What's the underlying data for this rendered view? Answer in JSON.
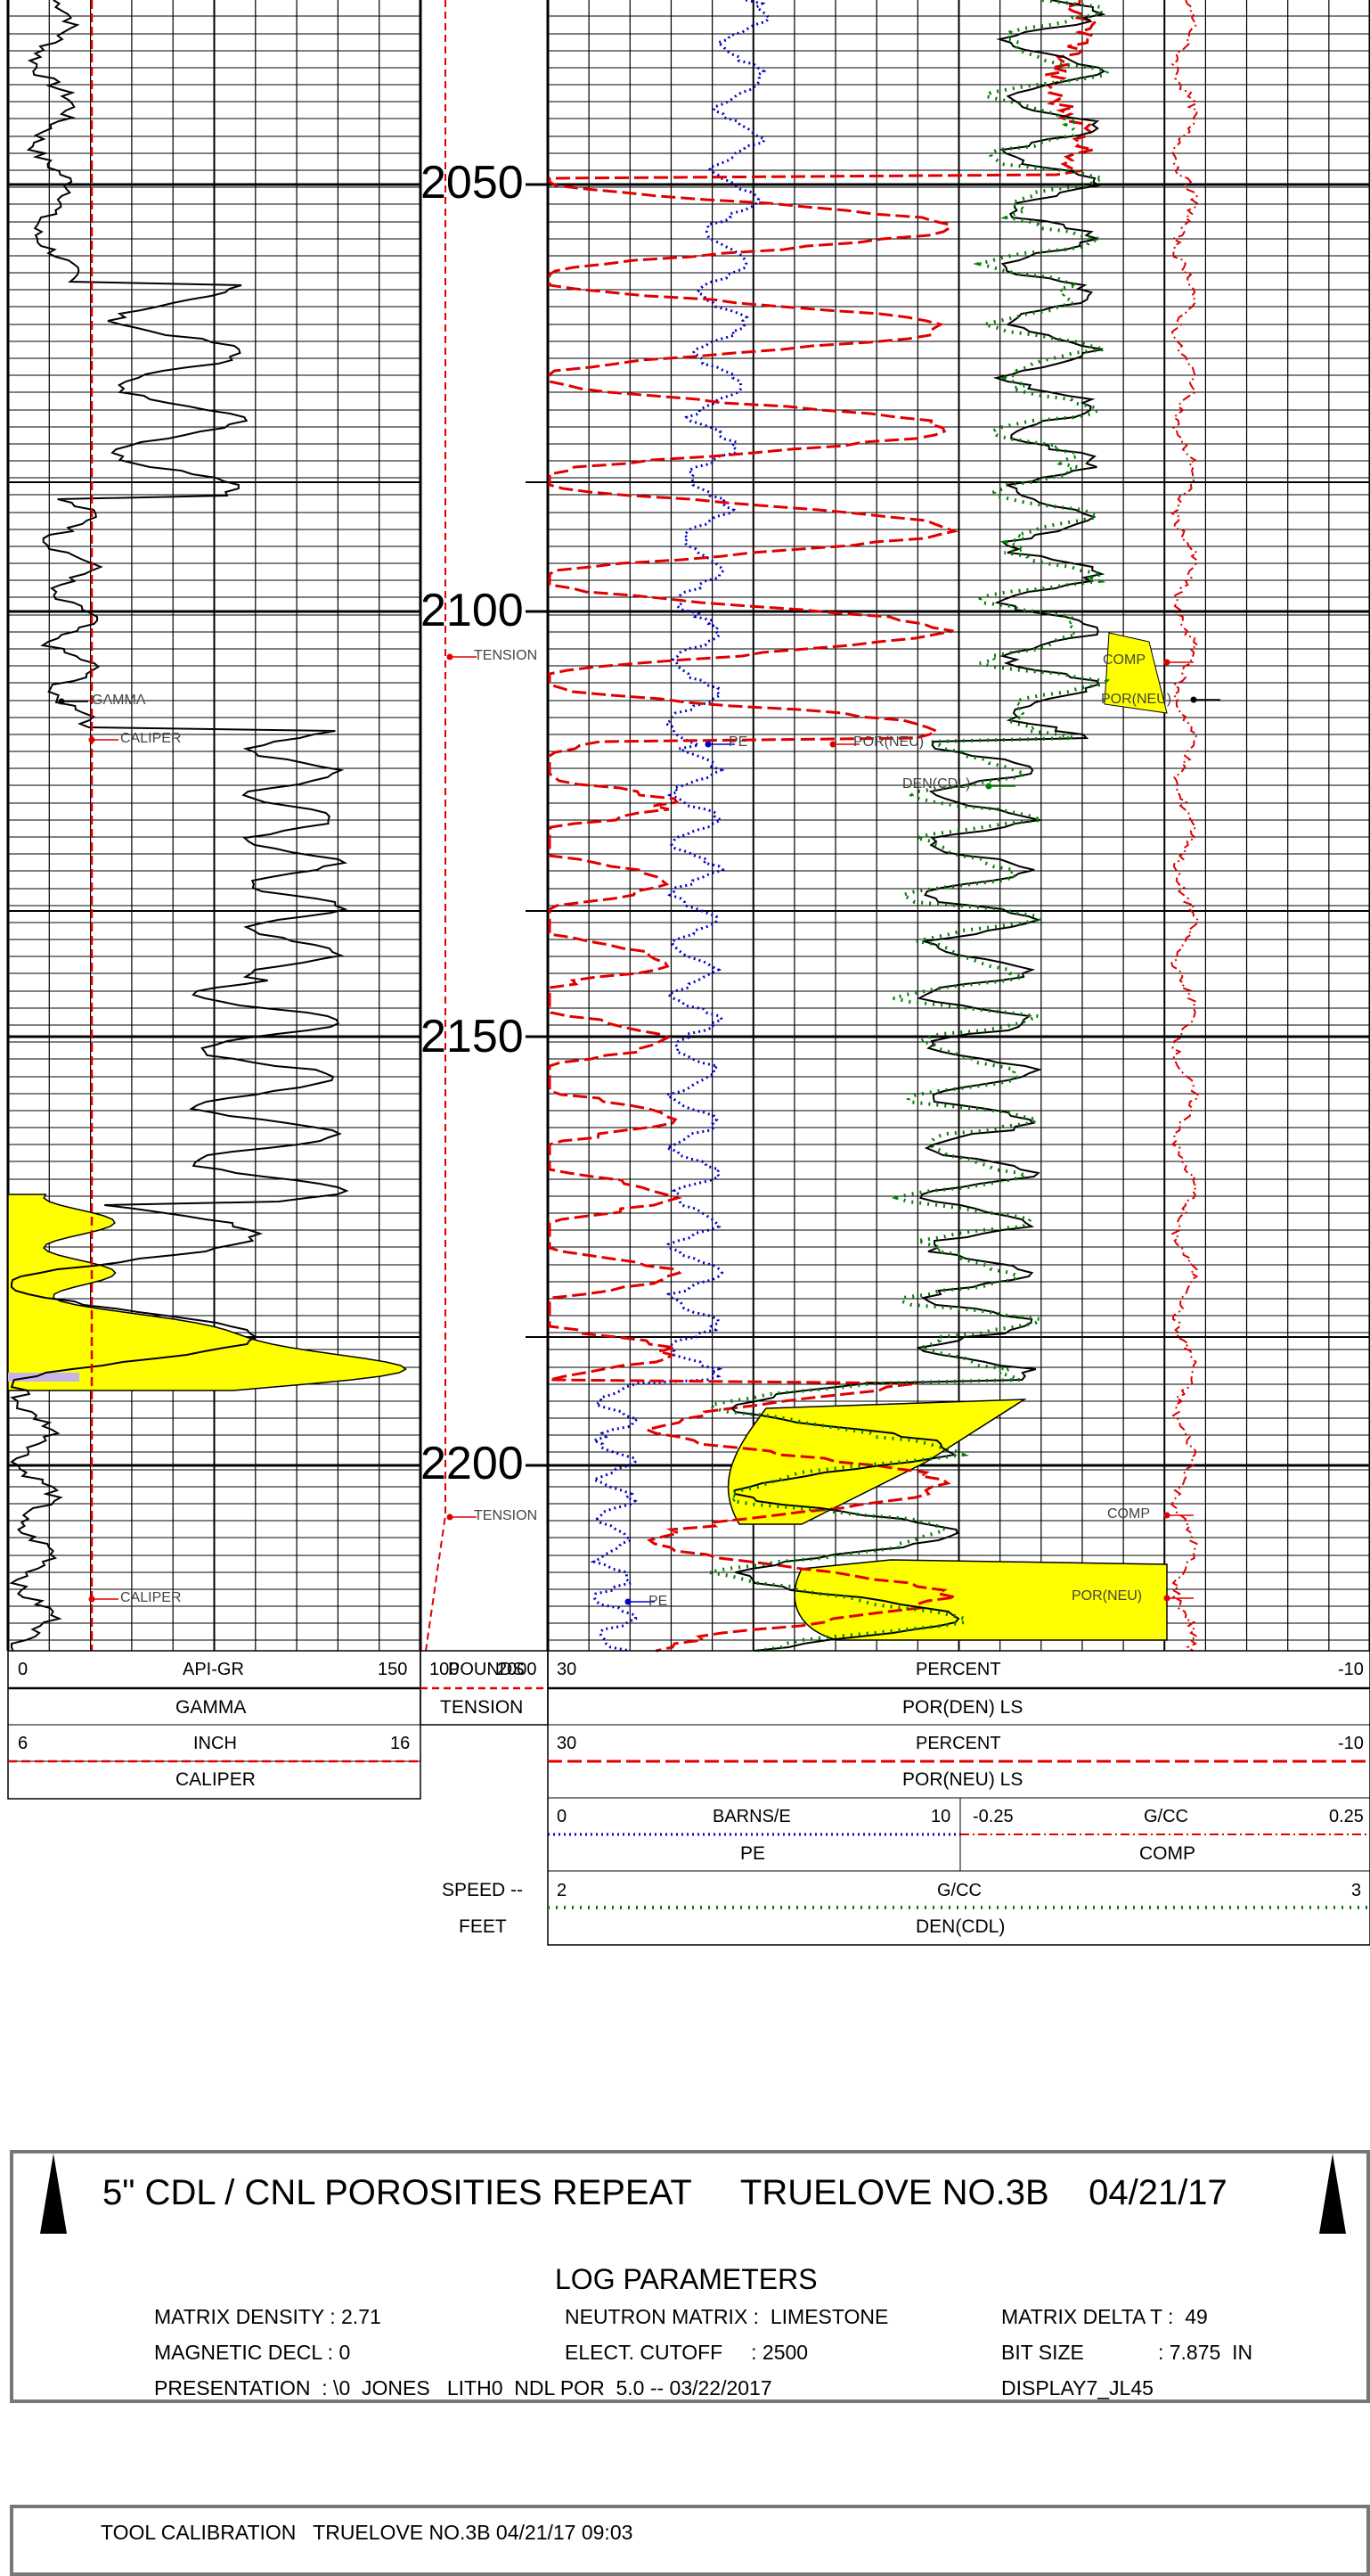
{
  "depth_track": {
    "labels": [
      "2050",
      "2100",
      "2150",
      "2200"
    ]
  },
  "tags": {
    "tension_1": "TENSION",
    "tension_2": "TENSION",
    "gamma": "GAMMA",
    "caliper_1": "CALIPER",
    "caliper_2": "CALIPER",
    "pe_1": "PE",
    "pe_2": "PE",
    "por_neu_1": "POR(NEU)",
    "por_neu_2": "POR(NEU)",
    "por_neu_3": "POR(NEU)",
    "den_cdl": "DEN(CDL)",
    "comp_1": "COMP",
    "comp_2": "COMP"
  },
  "scales": {
    "gamma": {
      "left": "0",
      "unit": "API-GR",
      "right": "150",
      "mnemonic": "GAMMA"
    },
    "caliper": {
      "left": "6",
      "unit": "INCH",
      "right": "16",
      "mnemonic": "CALIPER"
    },
    "tension": {
      "left": "100",
      "unit": "POUNDS",
      "right": "2000",
      "mnemonic": "TENSION"
    },
    "speed": {
      "label": "SPEED --",
      "unit": "FEET"
    },
    "por_den": {
      "left": "30",
      "unit": "PERCENT",
      "right": "-10",
      "mnemonic": "POR(DEN) LS"
    },
    "por_neu": {
      "left": "30",
      "unit": "PERCENT",
      "right": "-10",
      "mnemonic": "POR(NEU) LS"
    },
    "pe": {
      "left": "0",
      "unit": "BARNS/E",
      "right": "10",
      "mnemonic": "PE"
    },
    "comp": {
      "left": "-0.25",
      "unit": "G/CC",
      "right": "0.25",
      "mnemonic": "COMP"
    },
    "den": {
      "left": "2",
      "unit": "G/CC",
      "right": "3",
      "mnemonic": "DEN(CDL)"
    }
  },
  "header": {
    "title": "5\" CDL / CNL POROSITIES REPEAT     TRUELOVE NO.3B    04/21/17",
    "section": "LOG PARAMETERS",
    "params": {
      "matrix_density": "MATRIX DENSITY : 2.71",
      "magnetic_decl": "MAGNETIC DECL : 0",
      "presentation": "PRESENTATION  : \\0  JONES   LITH0  NDL POR  5.0 -- 03/22/2017",
      "neutron_matrix": "NEUTRON MATRIX :  LIMESTONE",
      "elect_cutoff": "ELECT. CUTOFF     : 2500",
      "matrix_delta_t": "MATRIX DELTA T :  49",
      "bit_size": "BIT SIZE             : 7.875  IN",
      "display": "DISPLAY7_JL45"
    }
  },
  "calibration": {
    "title": "TOOL CALIBRATION   TRUELOVE NO.3B 04/21/17 09:03"
  },
  "colors": {
    "gamma": "#000000",
    "caliper": "#e00000",
    "tension": "#e00000",
    "por_neu": "#e00000",
    "pe": "#0000cc",
    "comp": "#e00000",
    "den": "#008000",
    "crossover_fill": "#ffff00",
    "gamma_fill": "#ffff00",
    "gamma_fill_alt": "#c8b4e8"
  }
}
